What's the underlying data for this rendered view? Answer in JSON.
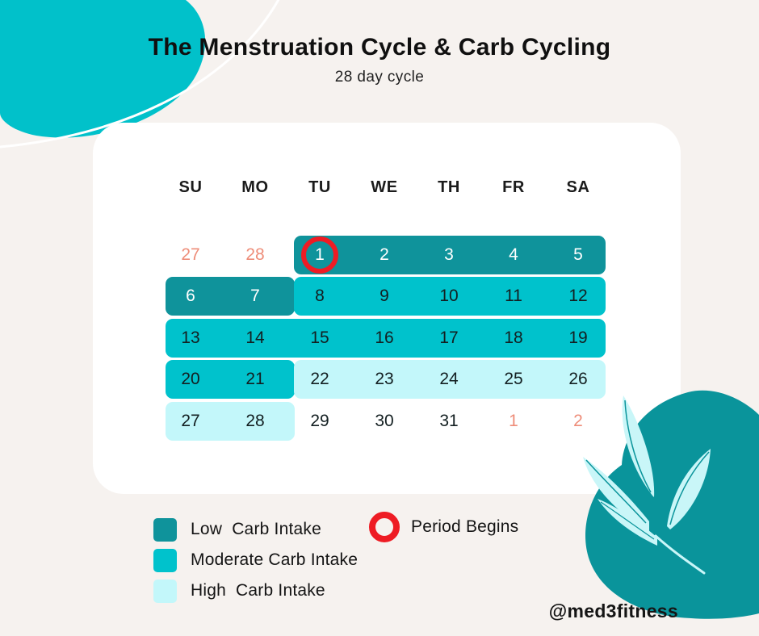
{
  "page": {
    "title": "The Menstruation Cycle & Carb Cycling",
    "subtitle": "28 day cycle",
    "watermark": "@med3fitness"
  },
  "colors": {
    "background": "#f6f2ef",
    "card": "#ffffff",
    "low": "#0f939b",
    "moderate": "#00c2cc",
    "high": "#c3f7fa",
    "muted_day": "#ee8d79",
    "period_ring": "#ee1c24",
    "blob_top": "#01c1ca",
    "blob_bottom": "#0a949b",
    "leaf": "#c9f6f8",
    "text_dark": "#131f21",
    "text_on_dark": "#ffffff"
  },
  "calendar": {
    "day_headers": [
      "SU",
      "MO",
      "TU",
      "WE",
      "TH",
      "FR",
      "SA"
    ],
    "weeks": [
      [
        {
          "day": "27",
          "style": "muted"
        },
        {
          "day": "28",
          "style": "muted"
        },
        {
          "day": "1",
          "style": "on-dark",
          "period_begins": true
        },
        {
          "day": "2",
          "style": "on-dark"
        },
        {
          "day": "3",
          "style": "on-dark"
        },
        {
          "day": "4",
          "style": "on-dark"
        },
        {
          "day": "5",
          "style": "on-dark"
        }
      ],
      [
        {
          "day": "6",
          "style": "on-dark"
        },
        {
          "day": "7",
          "style": "on-dark"
        },
        {
          "day": "8",
          "style": "default"
        },
        {
          "day": "9",
          "style": "default"
        },
        {
          "day": "10",
          "style": "default"
        },
        {
          "day": "11",
          "style": "default"
        },
        {
          "day": "12",
          "style": "default"
        }
      ],
      [
        {
          "day": "13",
          "style": "default"
        },
        {
          "day": "14",
          "style": "default"
        },
        {
          "day": "15",
          "style": "default"
        },
        {
          "day": "16",
          "style": "default"
        },
        {
          "day": "17",
          "style": "default"
        },
        {
          "day": "18",
          "style": "default"
        },
        {
          "day": "19",
          "style": "default"
        }
      ],
      [
        {
          "day": "20",
          "style": "default"
        },
        {
          "day": "21",
          "style": "default"
        },
        {
          "day": "22",
          "style": "default"
        },
        {
          "day": "23",
          "style": "default"
        },
        {
          "day": "24",
          "style": "default"
        },
        {
          "day": "25",
          "style": "default"
        },
        {
          "day": "26",
          "style": "default"
        }
      ],
      [
        {
          "day": "27",
          "style": "default"
        },
        {
          "day": "28",
          "style": "default"
        },
        {
          "day": "29",
          "style": "default"
        },
        {
          "day": "30",
          "style": "default"
        },
        {
          "day": "31",
          "style": "default"
        },
        {
          "day": "1",
          "style": "muted"
        },
        {
          "day": "2",
          "style": "muted"
        }
      ]
    ],
    "blocks": [
      {
        "row": 0,
        "col_start": 2,
        "col_end": 6,
        "intensity": "low"
      },
      {
        "row": 1,
        "col_start": 0,
        "col_end": 1,
        "intensity": "low"
      },
      {
        "row": 1,
        "col_start": 2,
        "col_end": 6,
        "intensity": "moderate"
      },
      {
        "row": 2,
        "col_start": 0,
        "col_end": 6,
        "intensity": "moderate"
      },
      {
        "row": 3,
        "col_start": 0,
        "col_end": 1,
        "intensity": "moderate"
      },
      {
        "row": 3,
        "col_start": 2,
        "col_end": 6,
        "intensity": "high"
      },
      {
        "row": 4,
        "col_start": 0,
        "col_end": 1,
        "intensity": "high"
      }
    ]
  },
  "legend": {
    "items": [
      {
        "key": "low",
        "label": "Low  Carb Intake"
      },
      {
        "key": "moderate",
        "label": "Moderate Carb Intake"
      },
      {
        "key": "high",
        "label": "High  Carb Intake"
      }
    ],
    "period": {
      "label": "Period Begins"
    }
  }
}
